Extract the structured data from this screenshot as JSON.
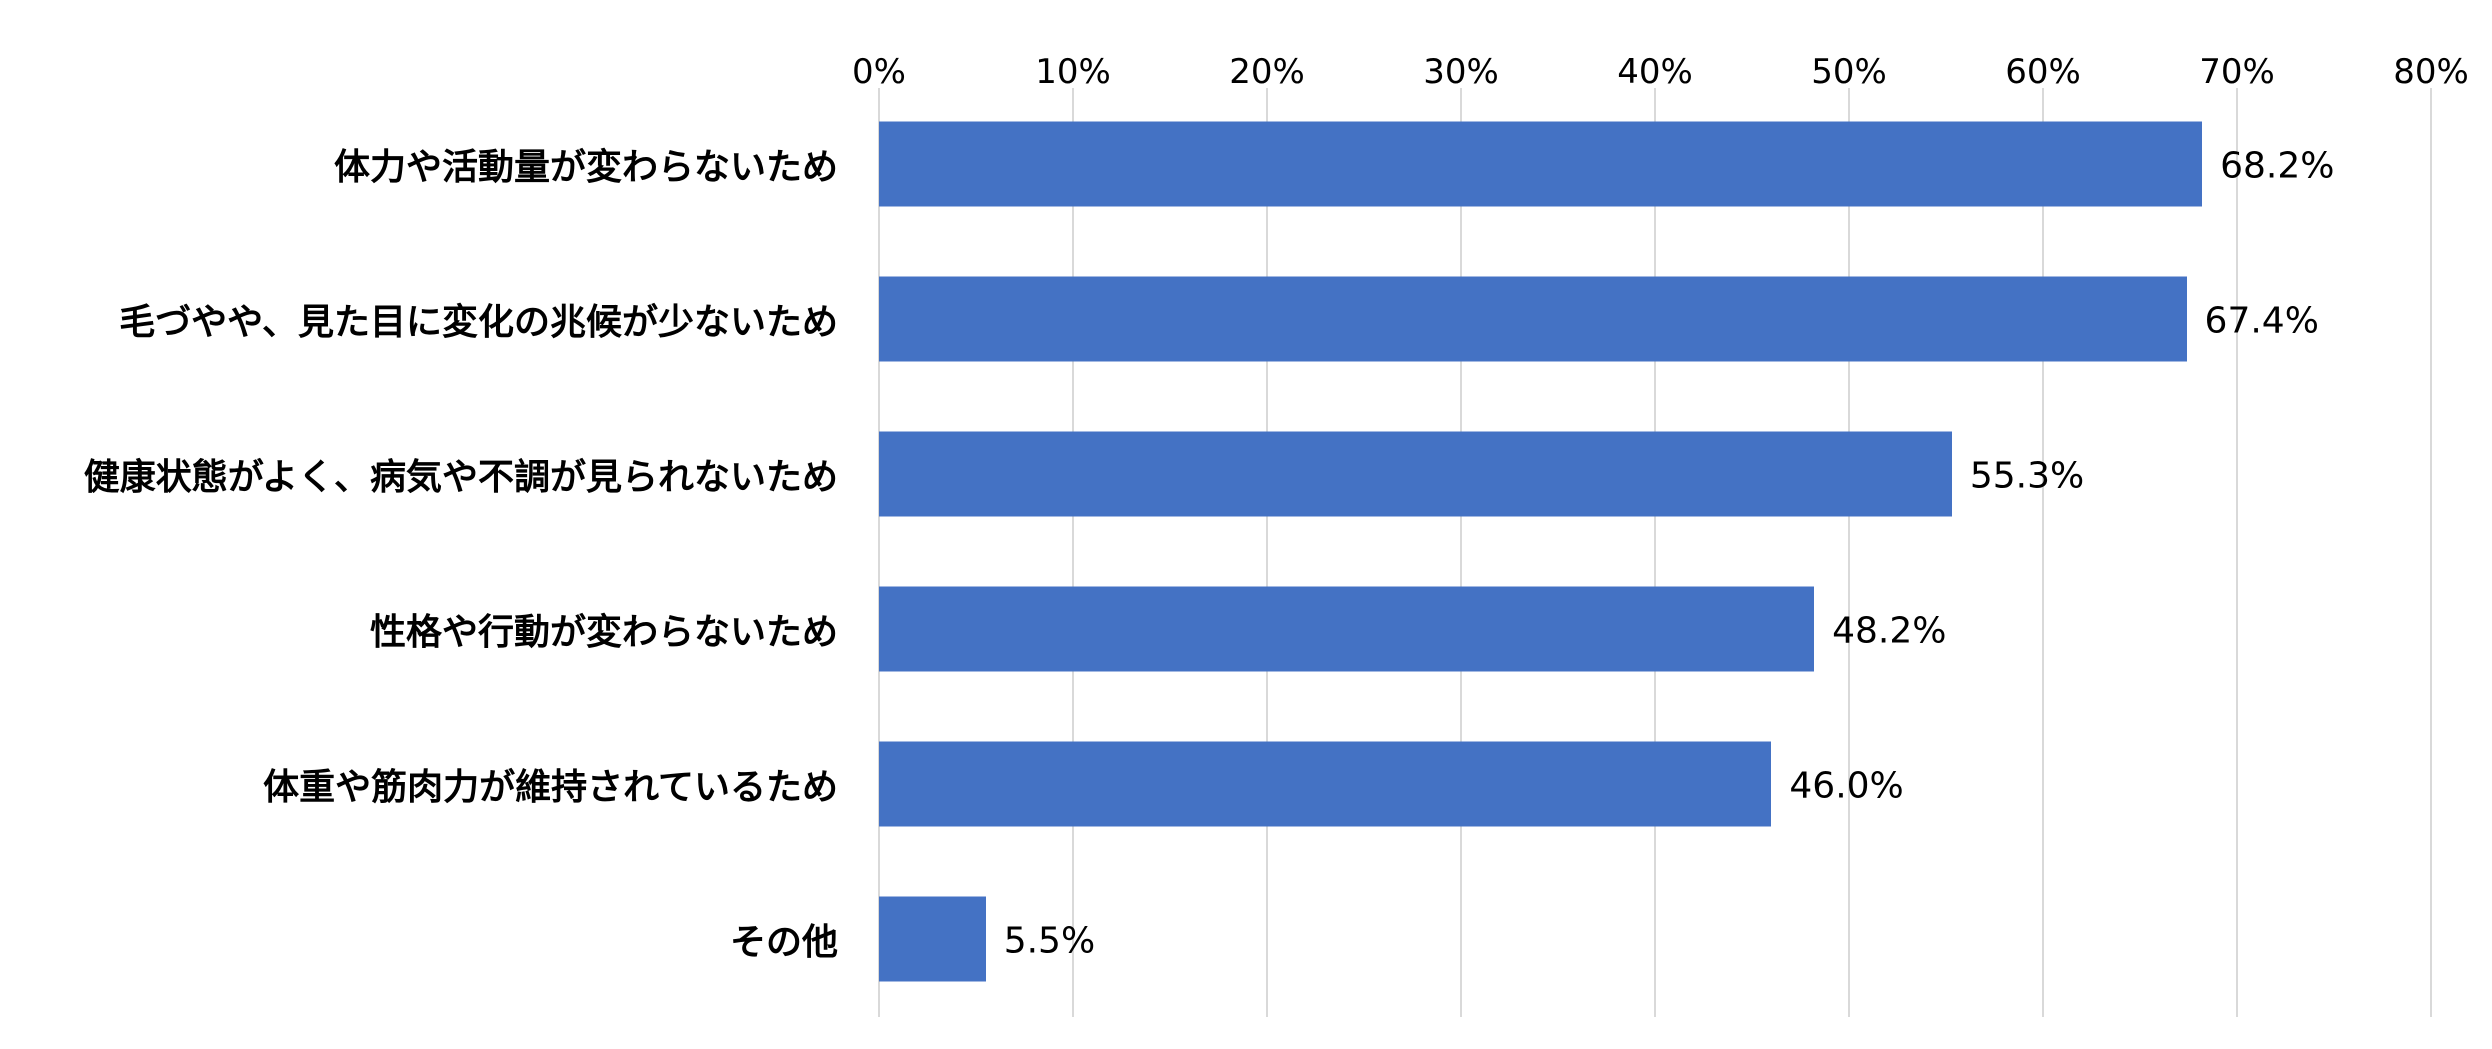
{
  "chart_data": {
    "type": "bar",
    "orientation": "horizontal",
    "title": "",
    "xlabel": "",
    "ylabel": "",
    "categories": [
      "体力や活動量が変わらないため",
      "毛づやや、見た目に変化の兆候が少ないため",
      "健康状態がよく、病気や不調が見られないため",
      "性格や行動が変わらないため",
      "体重や筋肉力が維持されているため",
      "その他"
    ],
    "values": [
      68.2,
      67.4,
      55.3,
      48.2,
      46.0,
      5.5
    ],
    "value_labels": [
      "68.2%",
      "67.4%",
      "55.3%",
      "48.2%",
      "46.0%",
      "5.5%"
    ],
    "xlim": [
      0,
      80
    ],
    "x_ticks": [
      0,
      10,
      20,
      30,
      40,
      50,
      60,
      70,
      80
    ],
    "x_tick_labels": [
      "0%",
      "10%",
      "20%",
      "30%",
      "40%",
      "50%",
      "60%",
      "70%",
      "80%"
    ],
    "axis_position": "top",
    "grid": true,
    "legend": null,
    "bar_color": "#4472c4",
    "grid_color": "#d9d9d9"
  }
}
